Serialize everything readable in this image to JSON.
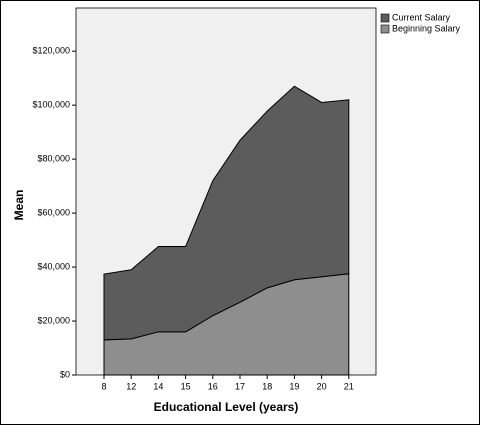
{
  "chart_data": {
    "type": "area",
    "stacked": true,
    "x_label": "Educational Level (years)",
    "y_label": "Mean",
    "categories": [
      "8",
      "12",
      "14",
      "15",
      "16",
      "17",
      "18",
      "19",
      "20",
      "21"
    ],
    "series": [
      {
        "name": "Current Salary",
        "color": "#5c5c5c",
        "values": [
          24400,
          25600,
          31600,
          31600,
          50000,
          60000,
          65500,
          71700,
          64600,
          64500
        ]
      },
      {
        "name": "Beginning Salary",
        "color": "#8e8e8e",
        "values": [
          13000,
          13400,
          16000,
          16000,
          22000,
          27000,
          32300,
          35300,
          36400,
          37500
        ]
      }
    ],
    "ylim": [
      0,
      136000
    ],
    "yticks": [
      {
        "value": 0,
        "label": "$0"
      },
      {
        "value": 20000,
        "label": "$20,000"
      },
      {
        "value": 40000,
        "label": "$40,000"
      },
      {
        "value": 60000,
        "label": "$60,000"
      },
      {
        "value": 80000,
        "label": "$80,000"
      },
      {
        "value": 100000,
        "label": "$100,000"
      },
      {
        "value": 120000,
        "label": "$120,000"
      }
    ],
    "plot_background": "#f0f0f0"
  }
}
